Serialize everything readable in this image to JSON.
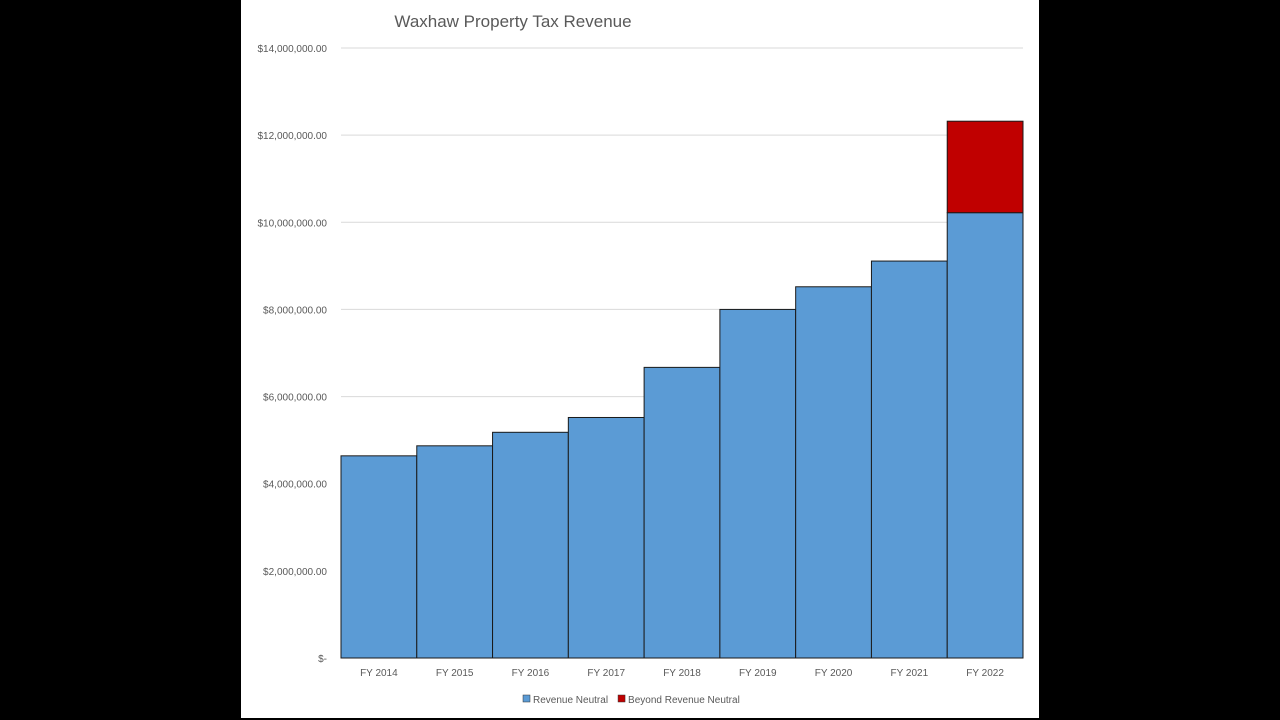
{
  "chart_data": {
    "type": "bar",
    "stacked": true,
    "title": "Waxhaw Property Tax Revenue",
    "xlabel": "",
    "ylabel": "",
    "categories": [
      "FY 2014",
      "FY 2015",
      "FY 2016",
      "FY 2017",
      "FY 2018",
      "FY 2019",
      "FY 2020",
      "FY 2021",
      "FY 2022"
    ],
    "series": [
      {
        "name": "Revenue Neutral",
        "color": "#5b9bd5",
        "values": [
          4640000,
          4870000,
          5180000,
          5520000,
          6670000,
          8000000,
          8520000,
          9110000,
          10220000
        ]
      },
      {
        "name": "Beyond Revenue Neutral",
        "color": "#c00000",
        "values": [
          0,
          0,
          0,
          0,
          0,
          0,
          0,
          0,
          2100000
        ]
      }
    ],
    "ylim": [
      0,
      14000000
    ],
    "yticks": [
      0,
      2000000,
      4000000,
      6000000,
      8000000,
      10000000,
      12000000,
      14000000
    ],
    "ytick_labels": [
      "$-",
      "$2,000,000.00",
      "$4,000,000.00",
      "$6,000,000.00",
      "$8,000,000.00",
      "$10,000,000.00",
      "$12,000,000.00",
      "$14,000,000.00"
    ],
    "grid": true,
    "legend_position": "bottom"
  }
}
